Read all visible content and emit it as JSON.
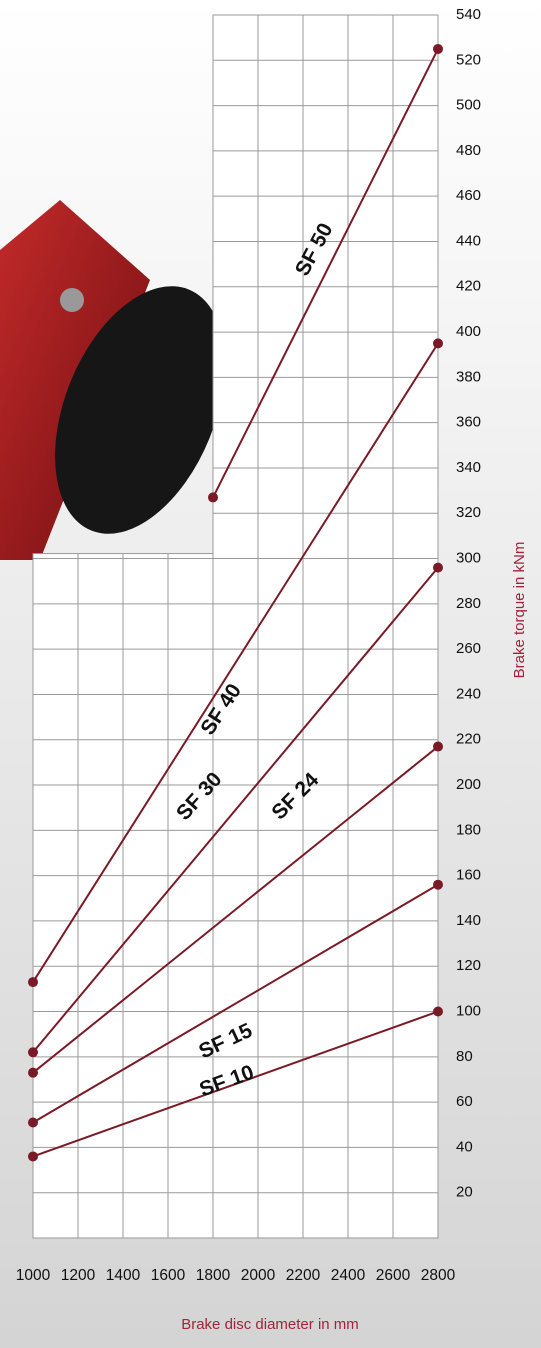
{
  "chart_data": {
    "type": "line",
    "x_label": "Brake disc diameter in mm",
    "y_label": "Brake torque in kNm",
    "xlim": [
      1000,
      2800
    ],
    "xticks": [
      1000,
      1200,
      1400,
      1600,
      1800,
      2000,
      2200,
      2400,
      2600,
      2800
    ],
    "ylim": [
      0,
      540
    ],
    "yticks": [
      20,
      40,
      60,
      80,
      100,
      120,
      140,
      160,
      180,
      200,
      220,
      240,
      260,
      280,
      300,
      320,
      340,
      360,
      380,
      400,
      420,
      440,
      460,
      480,
      500,
      520,
      540
    ],
    "grid": true,
    "color": "#7a1a26",
    "series": [
      {
        "name": "SF 10",
        "x": [
          1000,
          2800
        ],
        "values": [
          36,
          100
        ]
      },
      {
        "name": "SF 15",
        "x": [
          1000,
          2800
        ],
        "values": [
          51,
          156
        ]
      },
      {
        "name": "SF 24",
        "x": [
          1000,
          2800
        ],
        "values": [
          73,
          217
        ]
      },
      {
        "name": "SF 30",
        "x": [
          1000,
          2800
        ],
        "values": [
          82,
          296
        ]
      },
      {
        "name": "SF 40",
        "x": [
          1000,
          2800
        ],
        "values": [
          113,
          395
        ]
      },
      {
        "name": "SF 50",
        "x": [
          1800,
          2800
        ],
        "values": [
          327,
          525
        ]
      }
    ]
  }
}
